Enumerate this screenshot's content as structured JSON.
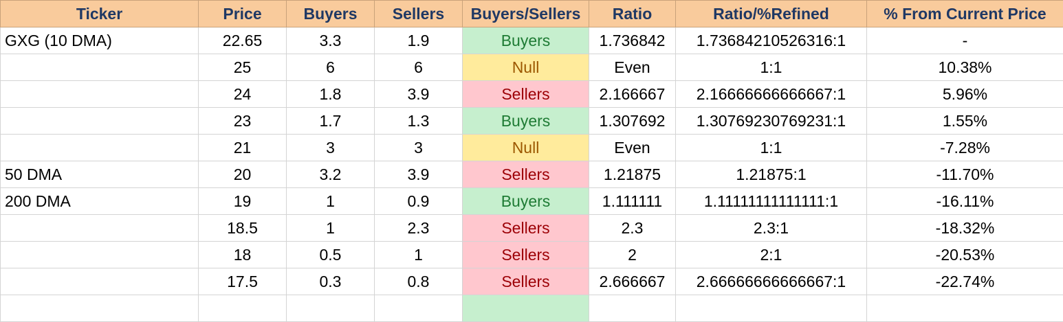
{
  "colors": {
    "header_bg": "#f9cb9c",
    "header_text": "#1f3864",
    "buyers_bg": "#c6efce",
    "buyers_text": "#1e7b34",
    "sellers_bg": "#ffc7ce",
    "sellers_text": "#9c0006",
    "null_bg": "#ffeb9c",
    "null_text": "#9c5700"
  },
  "headers": [
    "Ticker",
    "Price",
    "Buyers",
    "Sellers",
    "Buyers/Sellers",
    "Ratio",
    "Ratio/%Refined",
    "% From Current Price"
  ],
  "rows": [
    {
      "ticker": "GXG (10 DMA)",
      "price": "22.65",
      "buyers": "3.3",
      "sellers": "1.9",
      "signal": "Buyers",
      "ratio": "1.736842",
      "refined": "1.73684210526316:1",
      "pct": "-"
    },
    {
      "ticker": "",
      "price": "25",
      "buyers": "6",
      "sellers": "6",
      "signal": "Null",
      "ratio": "Even",
      "refined": "1:1",
      "pct": "10.38%"
    },
    {
      "ticker": "",
      "price": "24",
      "buyers": "1.8",
      "sellers": "3.9",
      "signal": "Sellers",
      "ratio": "2.166667",
      "refined": "2.16666666666667:1",
      "pct": "5.96%"
    },
    {
      "ticker": "",
      "price": "23",
      "buyers": "1.7",
      "sellers": "1.3",
      "signal": "Buyers",
      "ratio": "1.307692",
      "refined": "1.30769230769231:1",
      "pct": "1.55%"
    },
    {
      "ticker": "",
      "price": "21",
      "buyers": "3",
      "sellers": "3",
      "signal": "Null",
      "ratio": "Even",
      "refined": "1:1",
      "pct": "-7.28%"
    },
    {
      "ticker": "50 DMA",
      "price": "20",
      "buyers": "3.2",
      "sellers": "3.9",
      "signal": "Sellers",
      "ratio": "1.21875",
      "refined": "1.21875:1",
      "pct": "-11.70%"
    },
    {
      "ticker": "200 DMA",
      "price": "19",
      "buyers": "1",
      "sellers": "0.9",
      "signal": "Buyers",
      "ratio": "1.111111",
      "refined": "1.11111111111111:1",
      "pct": "-16.11%"
    },
    {
      "ticker": "",
      "price": "18.5",
      "buyers": "1",
      "sellers": "2.3",
      "signal": "Sellers",
      "ratio": "2.3",
      "refined": "2.3:1",
      "pct": "-18.32%"
    },
    {
      "ticker": "",
      "price": "18",
      "buyers": "0.5",
      "sellers": "1",
      "signal": "Sellers",
      "ratio": "2",
      "refined": "2:1",
      "pct": "-20.53%"
    },
    {
      "ticker": "",
      "price": "17.5",
      "buyers": "0.3",
      "sellers": "0.8",
      "signal": "Sellers",
      "ratio": "2.666667",
      "refined": "2.66666666666667:1",
      "pct": "-22.74%"
    }
  ]
}
